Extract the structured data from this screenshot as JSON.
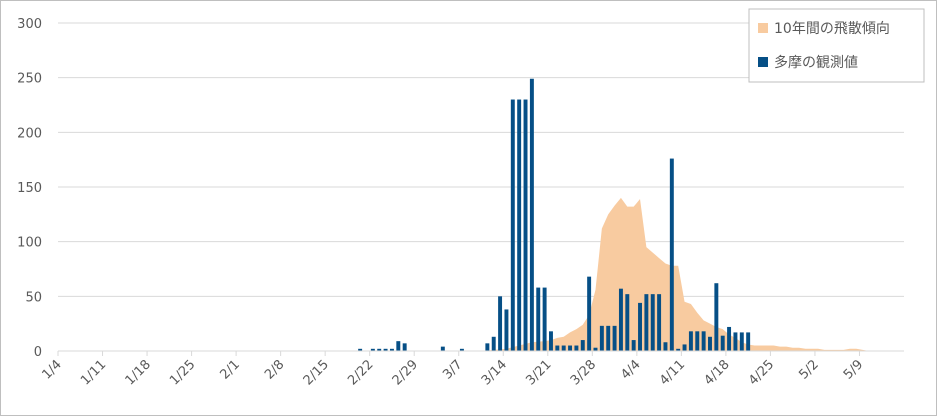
{
  "chart_data": {
    "type": "bar",
    "title": "",
    "xlabel": "",
    "ylabel": "",
    "ylim": [
      0,
      300
    ],
    "yticks": [
      0,
      50,
      100,
      150,
      200,
      250,
      300
    ],
    "grid": true,
    "legend_position": "top-right",
    "x_dates": [
      "1/4",
      "1/5",
      "1/6",
      "1/7",
      "1/8",
      "1/9",
      "1/10",
      "1/11",
      "1/12",
      "1/13",
      "1/14",
      "1/15",
      "1/16",
      "1/17",
      "1/18",
      "1/19",
      "1/20",
      "1/21",
      "1/22",
      "1/23",
      "1/24",
      "1/25",
      "1/26",
      "1/27",
      "1/28",
      "1/29",
      "1/30",
      "1/31",
      "2/1",
      "2/2",
      "2/3",
      "2/4",
      "2/5",
      "2/6",
      "2/7",
      "2/8",
      "2/9",
      "2/10",
      "2/11",
      "2/12",
      "2/13",
      "2/14",
      "2/15",
      "2/16",
      "2/17",
      "2/18",
      "2/19",
      "2/20",
      "2/21",
      "2/22",
      "2/23",
      "2/24",
      "2/25",
      "2/26",
      "2/27",
      "2/28",
      "2/29",
      "3/1",
      "3/2",
      "3/3",
      "3/4",
      "3/5",
      "3/6",
      "3/7",
      "3/8",
      "3/9",
      "3/10",
      "3/11",
      "3/12",
      "3/13",
      "3/14",
      "3/15",
      "3/16",
      "3/17",
      "3/18",
      "3/19",
      "3/20",
      "3/21",
      "3/22",
      "3/23",
      "3/24",
      "3/25",
      "3/26",
      "3/27",
      "3/28",
      "3/29",
      "3/30",
      "3/31",
      "4/1",
      "4/2",
      "4/3",
      "4/4",
      "4/5",
      "4/6",
      "4/7",
      "4/8",
      "4/9",
      "4/10",
      "4/11",
      "4/12",
      "4/13",
      "4/14",
      "4/15",
      "4/16",
      "4/17",
      "4/18",
      "4/19",
      "4/20",
      "4/21",
      "4/22",
      "4/23",
      "4/24",
      "4/25",
      "4/26",
      "4/27",
      "4/28",
      "4/29",
      "4/30",
      "5/1",
      "5/2",
      "5/3",
      "5/4",
      "5/5",
      "5/6",
      "5/7",
      "5/8",
      "5/9",
      "5/10",
      "5/11",
      "5/12",
      "5/13",
      "5/14",
      "5/15"
    ],
    "tick_labels": [
      "1/4",
      "1/11",
      "1/18",
      "1/25",
      "2/1",
      "2/8",
      "2/15",
      "2/22",
      "2/29",
      "3/7",
      "3/14",
      "3/21",
      "3/28",
      "4/4",
      "4/11",
      "4/18",
      "4/25",
      "5/2",
      "5/9"
    ],
    "series": [
      {
        "name": "10年間の飛散傾向",
        "kind": "area",
        "color": "#f8cba0",
        "points": [
          [
            "3/10",
            0
          ],
          [
            "3/12",
            1
          ],
          [
            "3/14",
            2
          ],
          [
            "3/16",
            5
          ],
          [
            "3/18",
            8
          ],
          [
            "3/20",
            9
          ],
          [
            "3/21",
            10
          ],
          [
            "3/22",
            12
          ],
          [
            "3/23",
            13
          ],
          [
            "3/24",
            17
          ],
          [
            "3/25",
            20
          ],
          [
            "3/26",
            24
          ],
          [
            "3/27",
            33
          ],
          [
            "3/28",
            56
          ],
          [
            "3/29",
            112
          ],
          [
            "3/30",
            125
          ],
          [
            "3/31",
            133
          ],
          [
            "4/1",
            140
          ],
          [
            "4/2",
            132
          ],
          [
            "4/3",
            132
          ],
          [
            "4/4",
            139
          ],
          [
            "4/5",
            95
          ],
          [
            "4/6",
            90
          ],
          [
            "4/7",
            85
          ],
          [
            "4/8",
            80
          ],
          [
            "4/9",
            78
          ],
          [
            "4/10",
            78
          ],
          [
            "4/11",
            45
          ],
          [
            "4/12",
            43
          ],
          [
            "4/13",
            35
          ],
          [
            "4/14",
            28
          ],
          [
            "4/15",
            25
          ],
          [
            "4/16",
            22
          ],
          [
            "4/17",
            20
          ],
          [
            "4/18",
            15
          ],
          [
            "4/19",
            12
          ],
          [
            "4/20",
            8
          ],
          [
            "4/21",
            6
          ],
          [
            "4/22",
            5
          ],
          [
            "4/23",
            5
          ],
          [
            "4/24",
            5
          ],
          [
            "4/25",
            5
          ],
          [
            "4/26",
            4
          ],
          [
            "4/27",
            4
          ],
          [
            "4/28",
            3
          ],
          [
            "4/29",
            3
          ],
          [
            "4/30",
            2
          ],
          [
            "5/1",
            2
          ],
          [
            "5/2",
            2
          ],
          [
            "5/3",
            1
          ],
          [
            "5/4",
            1
          ],
          [
            "5/5",
            1
          ],
          [
            "5/6",
            1
          ],
          [
            "5/7",
            2
          ],
          [
            "5/8",
            2
          ],
          [
            "5/9",
            1
          ],
          [
            "5/10",
            0
          ]
        ]
      },
      {
        "name": "多摩の観測値",
        "kind": "bar",
        "color": "#064f86",
        "points": [
          [
            "2/20",
            2
          ],
          [
            "2/22",
            2
          ],
          [
            "2/23",
            2
          ],
          [
            "2/24",
            2
          ],
          [
            "2/25",
            2
          ],
          [
            "2/26",
            9
          ],
          [
            "2/27",
            7
          ],
          [
            "3/4",
            4
          ],
          [
            "3/7",
            2
          ],
          [
            "3/11",
            7
          ],
          [
            "3/12",
            13
          ],
          [
            "3/13",
            50
          ],
          [
            "3/14",
            38
          ],
          [
            "3/15",
            230
          ],
          [
            "3/16",
            230
          ],
          [
            "3/17",
            230
          ],
          [
            "3/18",
            249
          ],
          [
            "3/19",
            58
          ],
          [
            "3/20",
            58
          ],
          [
            "3/21",
            18
          ],
          [
            "3/22",
            5
          ],
          [
            "3/23",
            5
          ],
          [
            "3/24",
            5
          ],
          [
            "3/25",
            5
          ],
          [
            "3/26",
            10
          ],
          [
            "3/27",
            68
          ],
          [
            "3/28",
            3
          ],
          [
            "3/29",
            23
          ],
          [
            "3/30",
            23
          ],
          [
            "3/31",
            23
          ],
          [
            "4/1",
            57
          ],
          [
            "4/2",
            52
          ],
          [
            "4/3",
            10
          ],
          [
            "4/4",
            44
          ],
          [
            "4/5",
            52
          ],
          [
            "4/6",
            52
          ],
          [
            "4/7",
            52
          ],
          [
            "4/8",
            8
          ],
          [
            "4/9",
            176
          ],
          [
            "4/10",
            2
          ],
          [
            "4/11",
            6
          ],
          [
            "4/12",
            18
          ],
          [
            "4/13",
            18
          ],
          [
            "4/14",
            18
          ],
          [
            "4/15",
            13
          ],
          [
            "4/16",
            62
          ],
          [
            "4/17",
            14
          ],
          [
            "4/18",
            22
          ],
          [
            "4/19",
            17
          ],
          [
            "4/20",
            17
          ],
          [
            "4/21",
            17
          ]
        ]
      }
    ]
  }
}
